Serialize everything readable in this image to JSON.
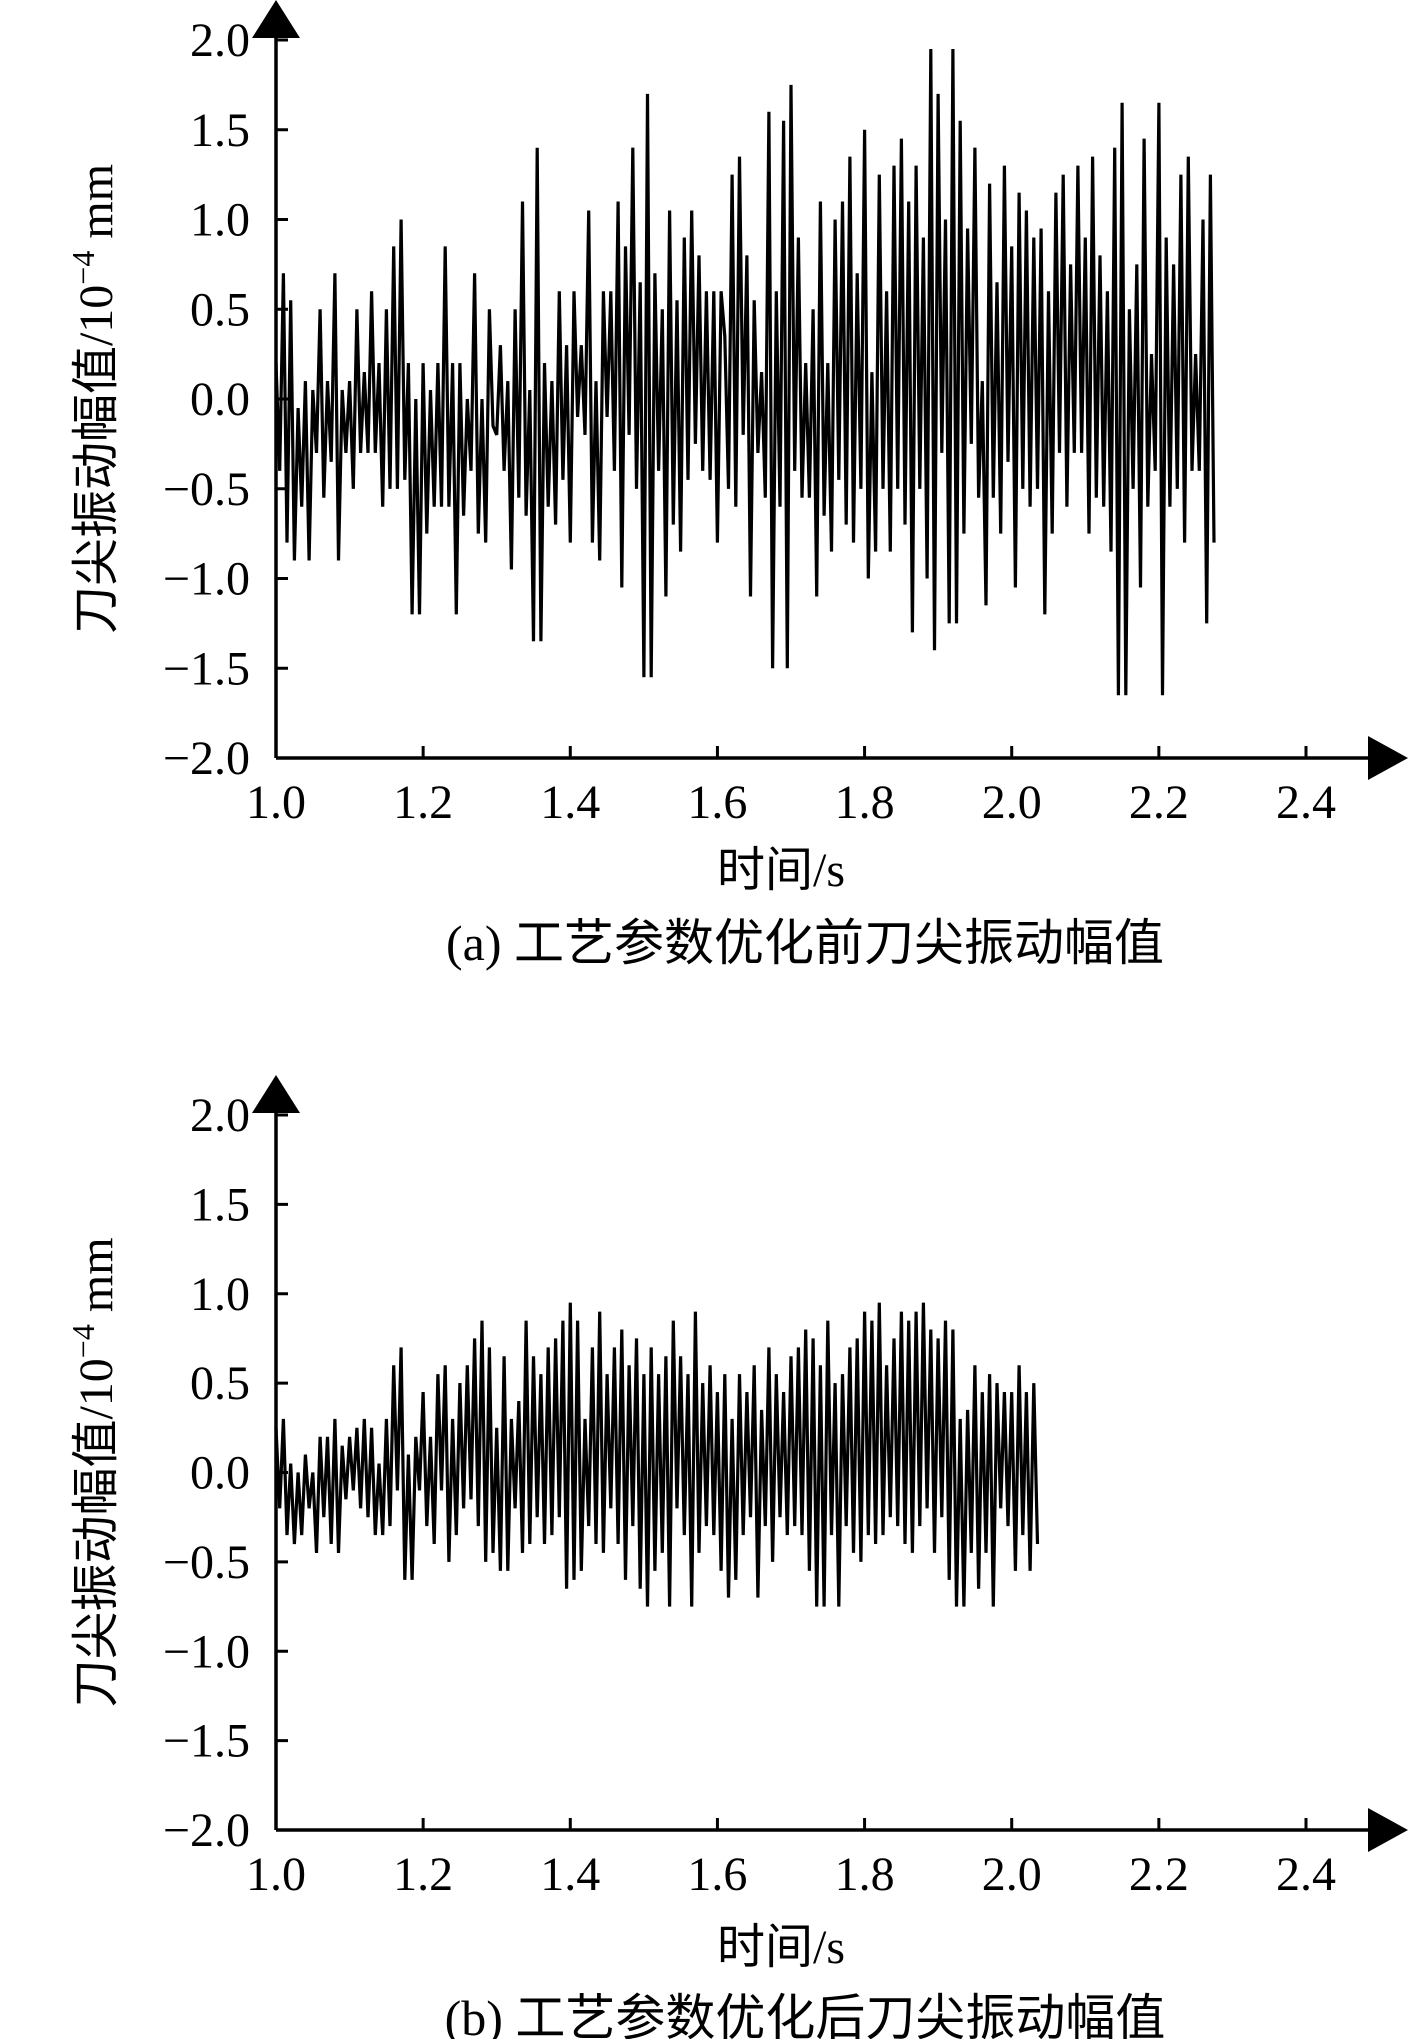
{
  "chart_data": [
    {
      "type": "line",
      "caption": "(a) 工艺参数优化前刀尖振动幅值",
      "xlabel": "时间/s",
      "ylabel_main": "刀尖振动幅值/10",
      "ylabel_exp": "−4",
      "ylabel_unit": " mm",
      "xlim": [
        1.0,
        2.4
      ],
      "ylim": [
        -2.0,
        2.0
      ],
      "xticks": [
        "1.0",
        "1.2",
        "1.4",
        "1.6",
        "1.8",
        "2.0",
        "2.2",
        "2.4"
      ],
      "yticks": [
        "2.0",
        "1.5",
        "1.0",
        "0.5",
        "0.0",
        "−0.5",
        "−1.0",
        "−1.5",
        "−2.0"
      ],
      "x_start": 1.0,
      "x_step": 0.005,
      "values": [
        0.2,
        -0.4,
        0.7,
        -0.8,
        0.55,
        -0.9,
        -0.05,
        -0.6,
        0.1,
        -0.9,
        0.05,
        -0.3,
        0.5,
        -0.55,
        0.1,
        -0.35,
        0.7,
        -0.9,
        0.05,
        -0.3,
        0.1,
        -0.5,
        0.5,
        -0.3,
        0.15,
        -0.3,
        0.6,
        -0.3,
        0.2,
        -0.6,
        0.5,
        -0.5,
        0.85,
        -0.5,
        1.0,
        -0.45,
        0.2,
        -1.2,
        0.0,
        -1.2,
        0.2,
        -0.75,
        0.05,
        -0.6,
        0.2,
        -0.6,
        0.85,
        -0.6,
        0.2,
        -1.2,
        0.2,
        -0.65,
        0.0,
        -0.4,
        0.7,
        -0.75,
        0.0,
        -0.8,
        0.5,
        -0.15,
        -0.2,
        0.3,
        -0.4,
        0.1,
        -0.95,
        0.5,
        -0.55,
        1.1,
        -0.65,
        0.05,
        -1.35,
        1.4,
        -1.35,
        0.2,
        -0.6,
        0.1,
        -0.7,
        0.6,
        -0.45,
        0.3,
        -0.8,
        0.6,
        -0.1,
        0.3,
        -0.2,
        1.05,
        -0.8,
        0.1,
        -0.9,
        0.6,
        -0.1,
        0.6,
        -0.4,
        1.1,
        -1.05,
        0.85,
        -0.2,
        1.4,
        -0.5,
        0.65,
        -1.55,
        1.7,
        -1.55,
        0.7,
        -0.4,
        0.5,
        -1.1,
        1.05,
        -0.7,
        0.55,
        -0.85,
        0.9,
        -0.45,
        1.05,
        -0.25,
        0.8,
        -0.4,
        0.6,
        -0.45,
        0.6,
        -0.8,
        0.6,
        0.35,
        -0.5,
        1.25,
        -0.6,
        1.35,
        -0.2,
        0.8,
        -1.1,
        0.55,
        -0.3,
        0.15,
        -0.55,
        1.6,
        -1.5,
        0.6,
        -0.6,
        1.55,
        -1.5,
        1.75,
        -0.4,
        0.9,
        -0.55,
        0.2,
        -0.55,
        0.5,
        -1.1,
        1.1,
        -0.65,
        0.2,
        -0.85,
        1.0,
        -0.45,
        1.1,
        -0.7,
        1.35,
        -0.8,
        0.7,
        -0.5,
        1.5,
        -1.0,
        0.15,
        -0.85,
        1.25,
        -0.5,
        0.6,
        -0.85,
        1.3,
        -0.5,
        1.45,
        -0.7,
        1.1,
        -1.3,
        1.3,
        -0.5,
        0.9,
        -1.0,
        1.95,
        -1.4,
        1.7,
        -0.3,
        1.0,
        -1.25,
        1.95,
        -1.25,
        1.55,
        -0.75,
        0.95,
        -0.25,
        1.4,
        -0.55,
        0.1,
        -1.15,
        1.2,
        -0.55,
        0.65,
        -0.75,
        1.3,
        -0.35,
        0.85,
        -1.05,
        1.15,
        -0.5,
        1.05,
        -0.6,
        0.9,
        -0.5,
        0.95,
        -1.2,
        0.6,
        -0.75,
        1.15,
        -0.3,
        1.25,
        -0.6,
        0.75,
        -0.3,
        1.3,
        -0.3,
        0.9,
        -0.75,
        1.35,
        -0.55,
        0.8,
        -0.6,
        0.6,
        -0.85,
        1.4,
        -1.65,
        1.65,
        -1.65,
        0.5,
        -0.5,
        0.75,
        -1.05,
        1.45,
        -0.6,
        0.25,
        -0.4,
        1.65,
        -1.65,
        0.9,
        -0.6,
        0.75,
        -0.5,
        1.25,
        -0.8,
        1.35,
        -0.4,
        0.25,
        -0.4,
        1.0,
        -1.25,
        1.25,
        -0.8
      ],
      "colors": {
        "line": "#000000",
        "axis": "#000000",
        "background": "#ffffff"
      }
    },
    {
      "type": "line",
      "caption": "(b) 工艺参数优化后刀尖振动幅值",
      "xlabel": "时间/s",
      "ylabel_main": "刀尖振动幅值/10",
      "ylabel_exp": "−4",
      "ylabel_unit": " mm",
      "xlim": [
        1.0,
        2.4
      ],
      "ylim": [
        -2.0,
        2.0
      ],
      "xticks": [
        "1.0",
        "1.2",
        "1.4",
        "1.6",
        "1.8",
        "2.0",
        "2.2",
        "2.4"
      ],
      "yticks": [
        "2.0",
        "1.5",
        "1.0",
        "0.5",
        "0.0",
        "−0.5",
        "−1.0",
        "−1.5",
        "−2.0"
      ],
      "x_start": 1.0,
      "x_step": 0.005,
      "values": [
        0.25,
        -0.2,
        0.3,
        -0.35,
        0.05,
        -0.4,
        0.0,
        -0.35,
        0.1,
        -0.2,
        0.0,
        -0.45,
        0.2,
        -0.25,
        0.2,
        -0.4,
        0.3,
        -0.45,
        0.15,
        -0.15,
        0.2,
        -0.1,
        0.25,
        -0.2,
        0.3,
        -0.25,
        0.25,
        -0.35,
        0.05,
        -0.35,
        0.3,
        -0.3,
        0.6,
        -0.1,
        0.7,
        -0.6,
        0.1,
        -0.6,
        0.2,
        -0.1,
        0.45,
        -0.3,
        0.2,
        -0.4,
        0.55,
        -0.1,
        0.6,
        -0.5,
        0.3,
        -0.35,
        0.5,
        -0.2,
        0.6,
        -0.15,
        0.75,
        -0.3,
        0.85,
        -0.5,
        0.7,
        -0.45,
        0.25,
        -0.55,
        0.65,
        -0.55,
        0.3,
        -0.2,
        0.4,
        -0.45,
        0.85,
        -0.4,
        0.65,
        -0.25,
        0.55,
        -0.4,
        0.7,
        -0.35,
        0.75,
        -0.25,
        0.85,
        -0.65,
        0.95,
        -0.6,
        0.85,
        -0.55,
        0.3,
        -0.3,
        0.7,
        -0.4,
        0.9,
        -0.45,
        0.55,
        -0.2,
        0.7,
        -0.4,
        0.8,
        -0.6,
        0.6,
        -0.3,
        0.75,
        -0.65,
        0.55,
        -0.75,
        0.7,
        -0.55,
        0.55,
        -0.45,
        0.65,
        -0.75,
        0.85,
        -0.2,
        0.65,
        -0.35,
        0.55,
        -0.75,
        0.9,
        -0.45,
        0.5,
        -0.3,
        0.6,
        -0.35,
        0.45,
        -0.55,
        0.55,
        -0.7,
        0.3,
        -0.6,
        0.55,
        -0.35,
        0.45,
        -0.25,
        0.6,
        -0.7,
        0.35,
        -0.3,
        0.7,
        -0.5,
        0.55,
        -0.25,
        0.45,
        -0.35,
        0.65,
        -0.3,
        0.7,
        -0.35,
        0.8,
        -0.55,
        0.75,
        -0.75,
        0.6,
        -0.75,
        0.85,
        -0.35,
        0.5,
        -0.75,
        0.55,
        -0.3,
        0.7,
        -0.45,
        0.75,
        -0.5,
        0.9,
        -0.35,
        0.85,
        -0.4,
        0.95,
        -0.35,
        0.6,
        -0.25,
        0.75,
        -0.3,
        0.9,
        -0.4,
        0.85,
        -0.45,
        0.9,
        -0.3,
        0.95,
        -0.2,
        0.8,
        -0.45,
        0.75,
        -0.25,
        0.85,
        -0.6,
        0.8,
        -0.75,
        0.3,
        -0.75,
        0.35,
        -0.45,
        0.6,
        -0.65,
        0.45,
        -0.45,
        0.55,
        -0.75,
        0.5,
        -0.2,
        0.45,
        -0.3,
        0.45,
        -0.55,
        0.6,
        -0.35,
        0.45,
        -0.55,
        0.5,
        -0.4
      ],
      "colors": {
        "line": "#000000",
        "axis": "#000000",
        "background": "#ffffff"
      }
    }
  ]
}
